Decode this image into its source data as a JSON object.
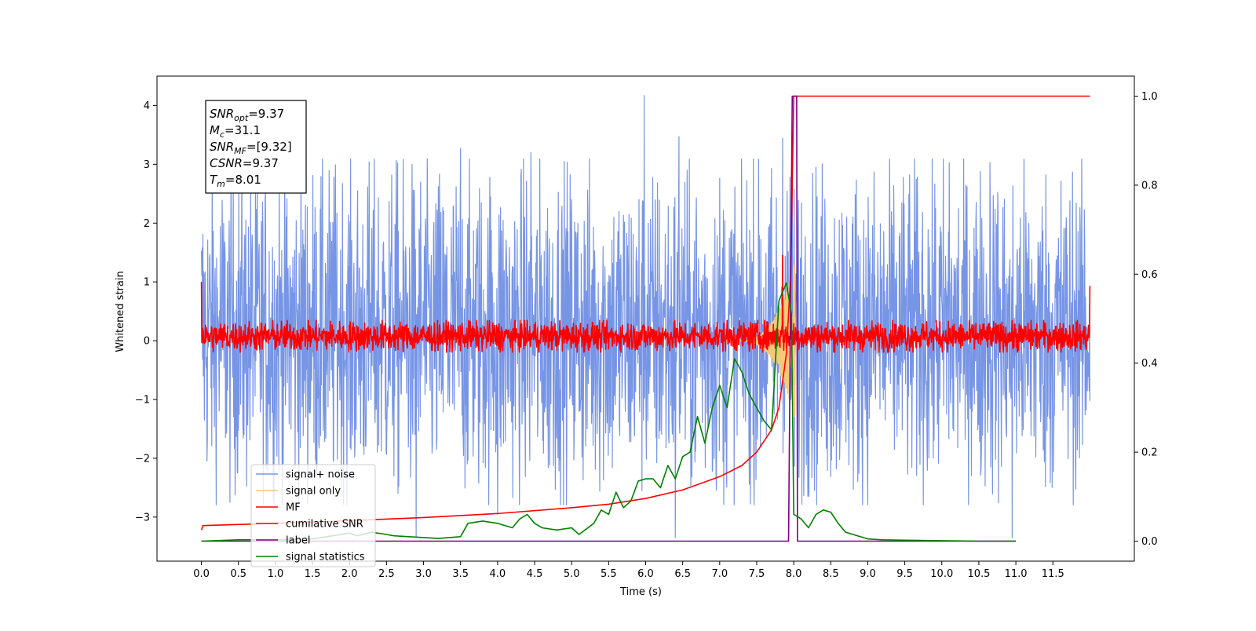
{
  "chart_data": {
    "type": "line",
    "xlabel": "Time (s)",
    "ylabel": "Whitened strain",
    "xlim": [
      -0.6,
      12.6
    ],
    "ylim": [
      -3.75,
      4.5
    ],
    "y2lim": [
      -0.045,
      1.045
    ],
    "x_ticks": [
      0.0,
      0.5,
      1.0,
      1.5,
      2.0,
      2.5,
      3.0,
      3.5,
      4.0,
      4.5,
      5.0,
      5.5,
      6.0,
      6.5,
      7.0,
      7.5,
      8.0,
      8.5,
      9.0,
      9.5,
      10.0,
      10.5,
      11.0,
      11.5
    ],
    "x_tick_labels": [
      "0.0",
      "0.5",
      "1.0",
      "1.5",
      "2.0",
      "2.5",
      "3.0",
      "3.5",
      "4.0",
      "4.5",
      "5.0",
      "5.5",
      "6.0",
      "6.5",
      "7.0",
      "7.5",
      "8.0",
      "8.5",
      "9.0",
      "9.5",
      "10.0",
      "10.5",
      "11.0",
      "11.5"
    ],
    "y_ticks": [
      -3,
      -2,
      -1,
      0,
      1,
      2,
      3,
      4
    ],
    "y_tick_labels": [
      "−3",
      "−2",
      "−1",
      "0",
      "1",
      "2",
      "3",
      "4"
    ],
    "y2_ticks": [
      0.0,
      0.2,
      0.4,
      0.6,
      0.8,
      1.0
    ],
    "y2_tick_labels": [
      "0.0",
      "0.2",
      "0.4",
      "0.6",
      "0.8",
      "1.0"
    ],
    "legend": {
      "placement": "lower-left",
      "entries": [
        {
          "label": "signal+ noise",
          "color": "#7795e6"
        },
        {
          "label": "signal only",
          "color": "#f5c97a"
        },
        {
          "label": "MF",
          "color": "#ff0000"
        },
        {
          "label": "cumilative SNR",
          "color": "#ff0000"
        },
        {
          "label": "label",
          "color": "#800080"
        },
        {
          "label": "signal statistics",
          "color": "#008000"
        }
      ]
    },
    "info_box": {
      "placement": "top-left",
      "lines": [
        {
          "main": "SNR",
          "sub": "opt",
          "value": "=9.37"
        },
        {
          "main": "M",
          "sub": "c",
          "value": "=31.1"
        },
        {
          "main": "SNR",
          "sub": "MF",
          "value": "=[9.32]"
        },
        {
          "main": "CSNR",
          "sub": "",
          "value": "=9.37"
        },
        {
          "main": "T",
          "sub": "m",
          "value": "=8.01"
        }
      ]
    },
    "series": [
      {
        "name": "signal+ noise",
        "axis": "left",
        "style": "noise",
        "color": "#7795e6",
        "x_range": [
          0.0,
          12.0
        ],
        "sample_count": 2400,
        "envelope": [
          -2.3,
          2.6
        ],
        "spikes": [
          {
            "x": 5.98,
            "y": 4.17
          },
          {
            "x": 6.45,
            "y": 3.47
          },
          {
            "x": 7.85,
            "y": 3.44
          },
          {
            "x": 3.5,
            "y": 3.27
          },
          {
            "x": 4.45,
            "y": 3.2
          },
          {
            "x": 10.1,
            "y": 3.03
          },
          {
            "x": 10.65,
            "y": 3.03
          },
          {
            "x": 2.9,
            "y": -3.35
          },
          {
            "x": 6.4,
            "y": -3.35
          },
          {
            "x": 10.95,
            "y": -3.35
          },
          {
            "x": 4.0,
            "y": -2.95
          },
          {
            "x": 8.05,
            "y": -3.05
          },
          {
            "x": 1.05,
            "y": 2.95
          },
          {
            "x": 7.95,
            "y": 2.78
          }
        ]
      },
      {
        "name": "signal only",
        "axis": "left",
        "style": "chirp",
        "color": "#f5c97a",
        "x_range": [
          7.2,
          8.02
        ],
        "peak_amplitude": 1.35
      },
      {
        "name": "MF",
        "axis": "left",
        "style": "noise",
        "color": "#ff0000",
        "x_range": [
          0.0,
          12.0
        ],
        "sample_count": 2400,
        "envelope": [
          -0.15,
          0.3
        ],
        "edge_values": {
          "start": 1.0,
          "end": 0.93
        },
        "bump": {
          "x": 7.85,
          "y": 1.45
        }
      },
      {
        "name": "cumilative SNR",
        "axis": "right",
        "color": "#ff0000",
        "x": [
          0.0,
          0.02,
          1.0,
          2.0,
          3.0,
          4.0,
          5.0,
          5.5,
          6.0,
          6.5,
          7.0,
          7.3,
          7.5,
          7.7,
          7.8,
          7.9,
          7.96,
          8.0,
          12.0
        ],
        "y": [
          0.025,
          0.035,
          0.04,
          0.046,
          0.053,
          0.062,
          0.075,
          0.083,
          0.096,
          0.115,
          0.145,
          0.17,
          0.2,
          0.25,
          0.3,
          0.42,
          0.6,
          1.0,
          1.0
        ]
      },
      {
        "name": "label",
        "axis": "right",
        "color": "#800080",
        "x": [
          0.0,
          7.93,
          7.98,
          8.04,
          8.05,
          11.0
        ],
        "y": [
          0.0,
          0.0,
          1.0,
          1.0,
          0.0,
          0.0
        ]
      },
      {
        "name": "signal statistics",
        "axis": "right",
        "color": "#008000",
        "x": [
          0.0,
          0.5,
          1.0,
          1.5,
          2.0,
          2.1,
          2.3,
          2.5,
          2.6,
          2.8,
          3.0,
          3.2,
          3.5,
          3.6,
          3.8,
          4.0,
          4.2,
          4.3,
          4.4,
          4.5,
          4.6,
          4.8,
          5.0,
          5.1,
          5.3,
          5.4,
          5.5,
          5.6,
          5.7,
          5.8,
          5.9,
          6.0,
          6.1,
          6.2,
          6.3,
          6.4,
          6.5,
          6.6,
          6.7,
          6.8,
          6.9,
          7.0,
          7.1,
          7.2,
          7.3,
          7.4,
          7.5,
          7.6,
          7.7,
          7.8,
          7.9,
          7.97,
          8.0,
          8.1,
          8.2,
          8.3,
          8.4,
          8.5,
          8.6,
          8.7,
          8.8,
          9.0,
          9.2,
          9.5,
          10.0,
          10.5,
          11.0
        ],
        "y": [
          0.0,
          0.003,
          0.003,
          0.005,
          0.018,
          0.012,
          0.02,
          0.015,
          0.012,
          0.01,
          0.008,
          0.006,
          0.01,
          0.04,
          0.045,
          0.04,
          0.03,
          0.05,
          0.06,
          0.04,
          0.03,
          0.025,
          0.03,
          0.015,
          0.04,
          0.07,
          0.06,
          0.11,
          0.075,
          0.09,
          0.135,
          0.14,
          0.14,
          0.12,
          0.17,
          0.14,
          0.19,
          0.2,
          0.28,
          0.22,
          0.3,
          0.35,
          0.3,
          0.41,
          0.38,
          0.33,
          0.3,
          0.27,
          0.25,
          0.54,
          0.58,
          0.51,
          0.06,
          0.05,
          0.03,
          0.06,
          0.07,
          0.065,
          0.04,
          0.02,
          0.015,
          0.005,
          0.003,
          0.002,
          0.001,
          0.0,
          0.0
        ]
      }
    ]
  }
}
